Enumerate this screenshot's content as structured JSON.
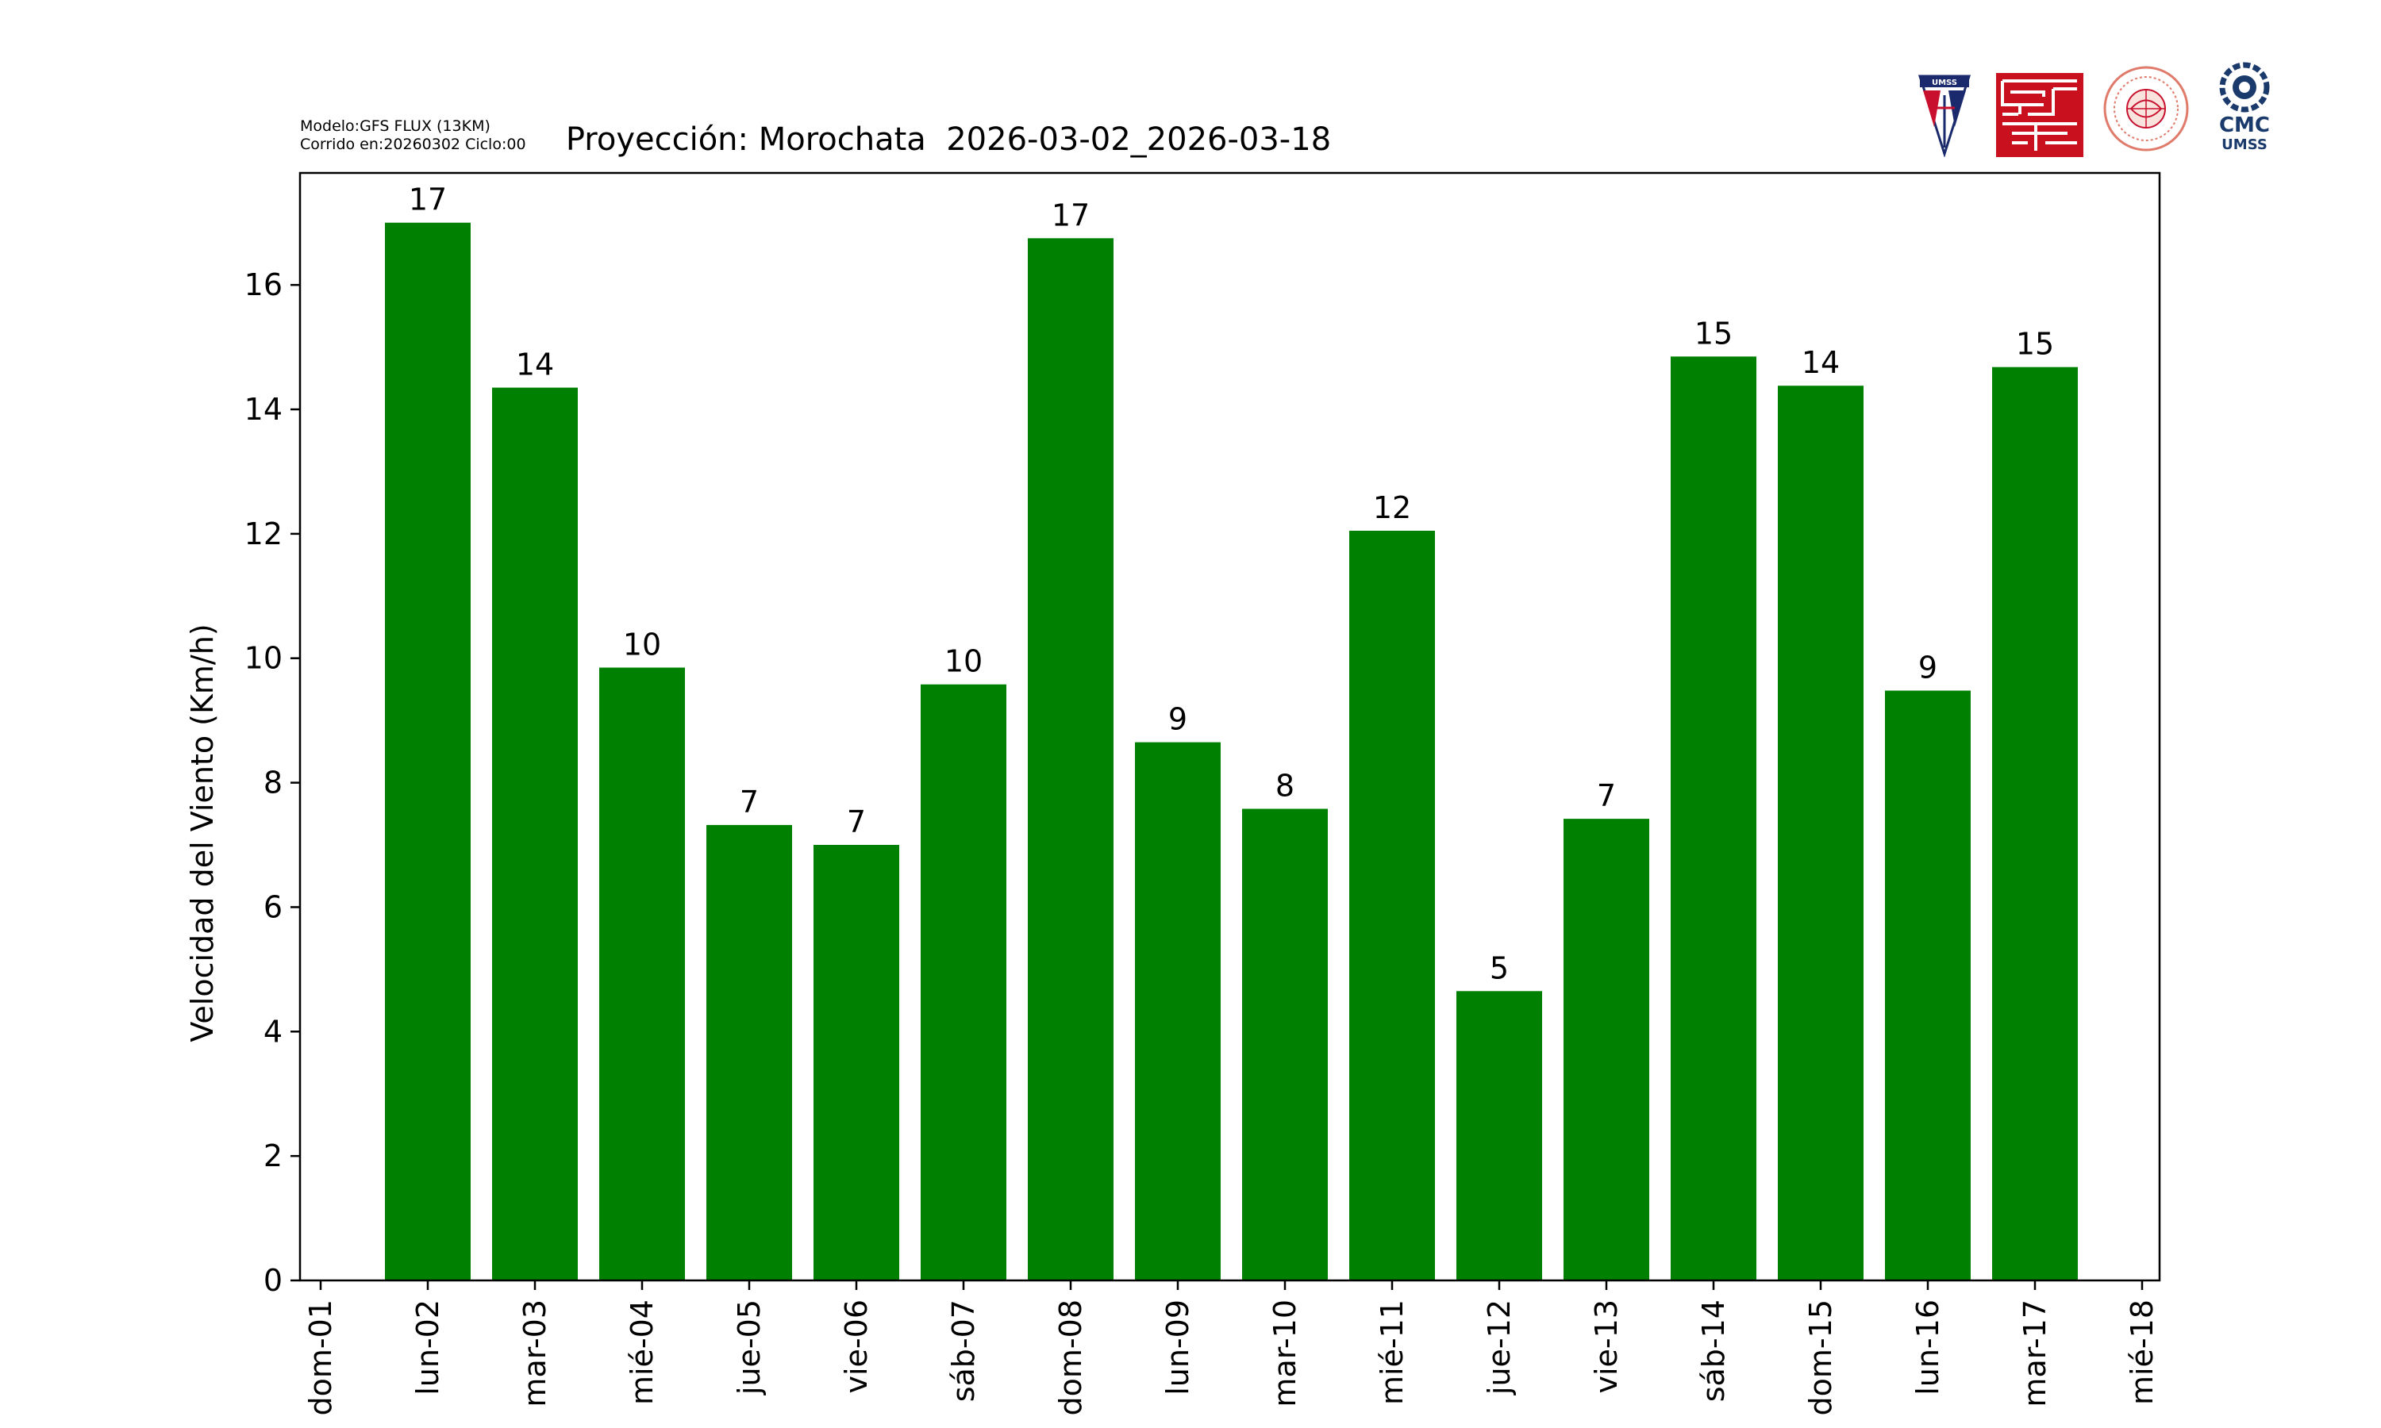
{
  "header": {
    "model_line": "Modelo:GFS FLUX (13KM)",
    "run_line": "Corrido en:20260302 Ciclo:00"
  },
  "logos": {
    "umss_text": "UMSS",
    "cmc_text": "CMC",
    "cmc_sub": "UMSS"
  },
  "chart_data": {
    "type": "bar",
    "title": "Proyección: Morochata  2026-03-02_2026-03-18",
    "xlabel": "",
    "ylabel": "Velocidad del Viento (Km/h)",
    "ylim": [
      0,
      17.8
    ],
    "yticks": [
      0,
      2,
      4,
      6,
      8,
      10,
      12,
      14,
      16
    ],
    "xticks": [
      "dom-01",
      "lun-02",
      "mar-03",
      "mié-04",
      "jue-05",
      "vie-06",
      "sáb-07",
      "dom-08",
      "lun-09",
      "mar-10",
      "mié-11",
      "jue-12",
      "vie-13",
      "sáb-14",
      "dom-15",
      "lun-16",
      "mar-17",
      "mié-18"
    ],
    "categories": [
      "lun-02",
      "mar-03",
      "mié-04",
      "jue-05",
      "vie-06",
      "sáb-07",
      "dom-08",
      "lun-09",
      "mar-10",
      "mié-11",
      "jue-12",
      "vie-13",
      "sáb-14",
      "dom-15",
      "lun-16",
      "mar-17"
    ],
    "values": [
      17.0,
      14.35,
      9.85,
      7.32,
      7.0,
      9.58,
      16.75,
      8.65,
      7.58,
      12.05,
      4.65,
      7.42,
      14.85,
      14.38,
      9.48,
      14.68
    ],
    "labels": [
      "17",
      "14",
      "10",
      "7",
      "7",
      "10",
      "17",
      "9",
      "8",
      "12",
      "5",
      "7",
      "15",
      "14",
      "9",
      "15"
    ],
    "bar_color": "#008000",
    "grid": false,
    "legend": "none"
  }
}
